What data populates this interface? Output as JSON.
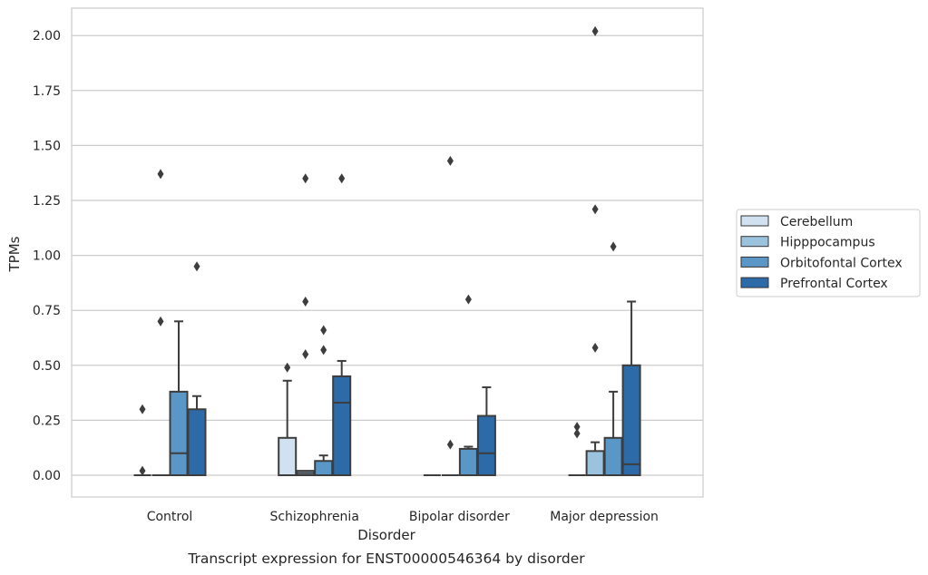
{
  "chart_data": {
    "type": "box",
    "xlabel": "Disorder",
    "ylabel": "TPMs",
    "caption": "Transcript expression for ENST00000546364 by disorder",
    "ylim": [
      -0.1,
      2.12
    ],
    "yticks": [
      "0.00",
      "0.25",
      "0.50",
      "0.75",
      "1.00",
      "1.25",
      "1.50",
      "1.75",
      "2.00"
    ],
    "ytick_values": [
      0,
      0.25,
      0.5,
      0.75,
      1.0,
      1.25,
      1.5,
      1.75,
      2.0
    ],
    "grid": "horizontal",
    "legend_position": "right",
    "categories": [
      "Control",
      "Schizophrenia",
      "Bipolar disorder",
      "Major depression"
    ],
    "series": [
      {
        "name": "Cerebellum",
        "color": "#d2e1f0",
        "boxes": [
          {
            "q1": 0,
            "median": 0,
            "q3": 0,
            "whislo": 0,
            "whishi": 0,
            "fliers": [
              0.3,
              0.02
            ]
          },
          {
            "q1": 0,
            "median": 0,
            "q3": 0.17,
            "whislo": 0,
            "whishi": 0.43,
            "fliers": [
              0.49
            ]
          },
          {
            "q1": 0,
            "median": 0,
            "q3": 0,
            "whislo": 0,
            "whishi": 0,
            "fliers": []
          },
          {
            "q1": 0,
            "median": 0,
            "q3": 0,
            "whislo": 0,
            "whishi": 0,
            "fliers": [
              0.22,
              0.19
            ]
          }
        ]
      },
      {
        "name": "Hipppocampus",
        "color": "#9cc3de",
        "boxes": [
          {
            "q1": 0,
            "median": 0,
            "q3": 0,
            "whislo": 0,
            "whishi": 0,
            "fliers": [
              1.37,
              0.7
            ]
          },
          {
            "q1": 0,
            "median": 0.01,
            "q3": 0.02,
            "whislo": 0,
            "whishi": 0.02,
            "fliers": [
              1.35,
              0.79,
              0.55
            ]
          },
          {
            "q1": 0,
            "median": 0,
            "q3": 0,
            "whislo": 0,
            "whishi": 0,
            "fliers": [
              1.43,
              0.14
            ]
          },
          {
            "q1": 0,
            "median": 0,
            "q3": 0.11,
            "whislo": 0,
            "whishi": 0.15,
            "fliers": [
              2.02,
              1.21,
              0.58
            ]
          }
        ]
      },
      {
        "name": "Orbitofontal Cortex",
        "color": "#5a96c6",
        "boxes": [
          {
            "q1": 0,
            "median": 0.1,
            "q3": 0.38,
            "whislo": 0,
            "whishi": 0.7,
            "fliers": []
          },
          {
            "q1": 0,
            "median": 0,
            "q3": 0.065,
            "whislo": 0,
            "whishi": 0.09,
            "fliers": [
              0.66,
              0.57
            ]
          },
          {
            "q1": 0,
            "median": 0,
            "q3": 0.12,
            "whislo": 0,
            "whishi": 0.13,
            "fliers": [
              0.8
            ]
          },
          {
            "q1": 0,
            "median": 0,
            "q3": 0.17,
            "whislo": 0,
            "whishi": 0.38,
            "fliers": [
              1.04
            ]
          }
        ]
      },
      {
        "name": "Prefrontal Cortex",
        "color": "#2c6ba8",
        "boxes": [
          {
            "q1": 0,
            "median": 0,
            "q3": 0.3,
            "whislo": 0,
            "whishi": 0.36,
            "fliers": [
              0.95
            ]
          },
          {
            "q1": 0,
            "median": 0.33,
            "q3": 0.45,
            "whislo": 0,
            "whishi": 0.52,
            "fliers": [
              1.35
            ]
          },
          {
            "q1": 0,
            "median": 0.1,
            "q3": 0.27,
            "whislo": 0,
            "whishi": 0.4,
            "fliers": []
          },
          {
            "q1": 0,
            "median": 0.05,
            "q3": 0.5,
            "whislo": 0,
            "whishi": 0.79,
            "fliers": []
          }
        ]
      }
    ]
  }
}
